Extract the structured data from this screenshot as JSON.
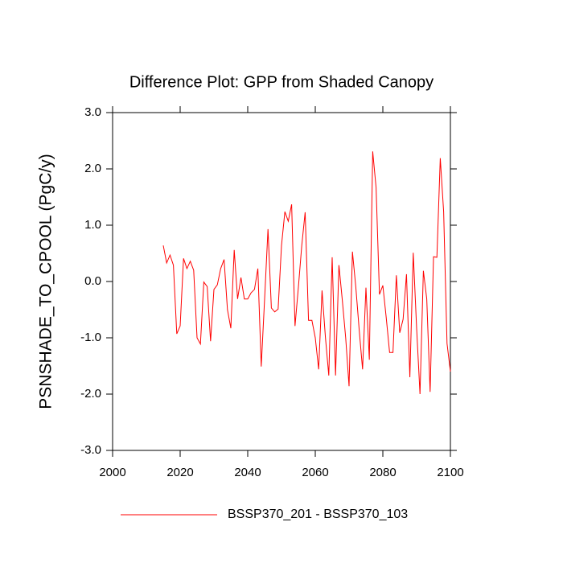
{
  "chart_data": {
    "type": "line",
    "title": "Difference Plot: GPP from Shaded Canopy",
    "y_label": "PSNSHADE_TO_CPOOL  (PgC/y)",
    "x": [
      2015,
      2016,
      2017,
      2018,
      2019,
      2020,
      2021,
      2022,
      2023,
      2024,
      2025,
      2026,
      2027,
      2028,
      2029,
      2030,
      2031,
      2032,
      2033,
      2034,
      2035,
      2036,
      2037,
      2038,
      2039,
      2040,
      2041,
      2042,
      2043,
      2044,
      2045,
      2046,
      2047,
      2048,
      2049,
      2050,
      2051,
      2052,
      2053,
      2054,
      2055,
      2056,
      2057,
      2058,
      2059,
      2060,
      2061,
      2062,
      2063,
      2064,
      2065,
      2066,
      2067,
      2068,
      2069,
      2070,
      2071,
      2072,
      2073,
      2074,
      2075,
      2076,
      2077,
      2078,
      2079,
      2080,
      2081,
      2082,
      2083,
      2084,
      2085,
      2086,
      2087,
      2088,
      2089,
      2090,
      2091,
      2092,
      2093,
      2094,
      2095,
      2096,
      2097,
      2098,
      2099,
      2100
    ],
    "series": [
      {
        "name": "BSSP370_201 - BSSP370_103",
        "color": "#ff0000",
        "values": [
          0.64,
          0.33,
          0.47,
          0.29,
          -0.93,
          -0.79,
          0.41,
          0.23,
          0.36,
          0.2,
          -1.0,
          -1.11,
          -0.01,
          -0.09,
          -1.06,
          -0.14,
          -0.06,
          0.23,
          0.39,
          -0.5,
          -0.83,
          0.56,
          -0.31,
          0.07,
          -0.31,
          -0.31,
          -0.2,
          -0.14,
          0.23,
          -1.51,
          -0.31,
          0.93,
          -0.47,
          -0.54,
          -0.49,
          0.64,
          1.24,
          1.07,
          1.37,
          -0.79,
          -0.1,
          0.64,
          1.23,
          -0.69,
          -0.69,
          -1.0,
          -1.56,
          -0.16,
          -0.99,
          -1.67,
          0.43,
          -1.67,
          0.29,
          -0.33,
          -1.0,
          -1.86,
          0.53,
          -0.1,
          -0.86,
          -1.56,
          -0.11,
          -1.39,
          2.31,
          1.67,
          -0.23,
          -0.07,
          -0.64,
          -1.26,
          -1.26,
          0.11,
          -0.91,
          -0.67,
          0.13,
          -1.7,
          0.51,
          -0.83,
          -2.0,
          0.19,
          -0.31,
          -1.96,
          0.44,
          0.43,
          2.19,
          1.24,
          -1.1,
          -1.6
        ]
      }
    ],
    "xlim": [
      2000,
      2100
    ],
    "xticks": [
      2000,
      2020,
      2040,
      2060,
      2080,
      2100
    ],
    "ylim": [
      -3,
      3
    ],
    "yticks": [
      {
        "value": -3,
        "label": "-3.0"
      },
      {
        "value": -2,
        "label": "-2.0"
      },
      {
        "value": -1,
        "label": "-1.0"
      },
      {
        "value": 0,
        "label": "0.0"
      },
      {
        "value": 1,
        "label": "1.0"
      },
      {
        "value": 2,
        "label": "2.0"
      },
      {
        "value": 3,
        "label": "3.0"
      }
    ]
  }
}
